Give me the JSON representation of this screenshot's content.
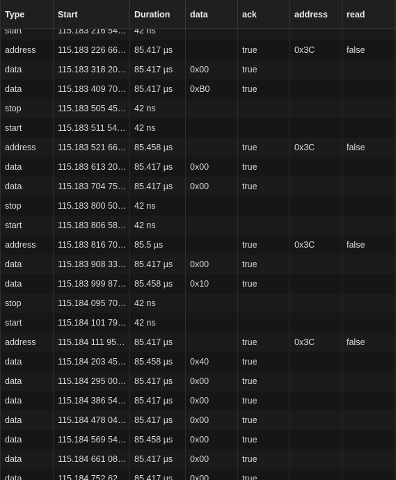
{
  "table": {
    "columns": [
      "Type",
      "Start",
      "Duration",
      "data",
      "ack",
      "address",
      "read"
    ],
    "rows": [
      [
        "start",
        "115.183 216 54…",
        "42 ns",
        "",
        "",
        "",
        ""
      ],
      [
        "address",
        "115.183 226 66…",
        "85.417 µs",
        "",
        "true",
        "0x3C",
        "false"
      ],
      [
        "data",
        "115.183 318 20…",
        "85.417 µs",
        "0x00",
        "true",
        "",
        ""
      ],
      [
        "data",
        "115.183 409 70…",
        "85.417 µs",
        "0xB0",
        "true",
        "",
        ""
      ],
      [
        "stop",
        "115.183 505 45…",
        "42 ns",
        "",
        "",
        "",
        ""
      ],
      [
        "start",
        "115.183 511 54…",
        "42 ns",
        "",
        "",
        "",
        ""
      ],
      [
        "address",
        "115.183 521 66…",
        "85.458 µs",
        "",
        "true",
        "0x3C",
        "false"
      ],
      [
        "data",
        "115.183 613 20…",
        "85.417 µs",
        "0x00",
        "true",
        "",
        ""
      ],
      [
        "data",
        "115.183 704 75…",
        "85.417 µs",
        "0x00",
        "true",
        "",
        ""
      ],
      [
        "stop",
        "115.183 800 50…",
        "42 ns",
        "",
        "",
        "",
        ""
      ],
      [
        "start",
        "115.183 806 58…",
        "42 ns",
        "",
        "",
        "",
        ""
      ],
      [
        "address",
        "115.183 816 70…",
        "85.5 µs",
        "",
        "true",
        "0x3C",
        "false"
      ],
      [
        "data",
        "115.183 908 33…",
        "85.417 µs",
        "0x00",
        "true",
        "",
        ""
      ],
      [
        "data",
        "115.183 999 87…",
        "85.458 µs",
        "0x10",
        "true",
        "",
        ""
      ],
      [
        "stop",
        "115.184 095 70…",
        "42 ns",
        "",
        "",
        "",
        ""
      ],
      [
        "start",
        "115.184 101 79…",
        "42 ns",
        "",
        "",
        "",
        ""
      ],
      [
        "address",
        "115.184 111 95…",
        "85.417 µs",
        "",
        "true",
        "0x3C",
        "false"
      ],
      [
        "data",
        "115.184 203 45…",
        "85.458 µs",
        "0x40",
        "true",
        "",
        ""
      ],
      [
        "data",
        "115.184 295 00…",
        "85.417 µs",
        "0x00",
        "true",
        "",
        ""
      ],
      [
        "data",
        "115.184 386 54…",
        "85.417 µs",
        "0x00",
        "true",
        "",
        ""
      ],
      [
        "data",
        "115.184 478 04…",
        "85.417 µs",
        "0x00",
        "true",
        "",
        ""
      ],
      [
        "data",
        "115.184 569 54…",
        "85.458 µs",
        "0x00",
        "true",
        "",
        ""
      ],
      [
        "data",
        "115.184 661 08…",
        "85.417 µs",
        "0x00",
        "true",
        "",
        ""
      ],
      [
        "data",
        "115.184 752 62…",
        "85.417 µs",
        "0x00",
        "true",
        "",
        ""
      ]
    ]
  }
}
